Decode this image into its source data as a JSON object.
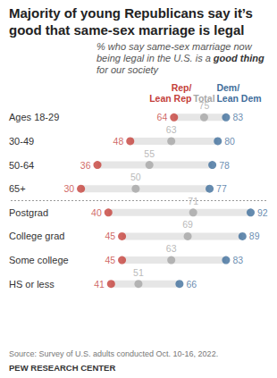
{
  "chart_data": {
    "type": "dot",
    "title": "Majority of young Republicans say it’s good that same-sex marriage is legal",
    "subtitle": "% who say same-sex marriage now being legal in the U.S. is a good thing for our society",
    "subtitle_bold": "good thing",
    "source": "Source: Survey of U.S. adults conducted Oct. 10-16, 2022.",
    "credit": "PEW RESEARCH CENTER",
    "categories": [
      "Ages 18-29",
      "30-49",
      "50-64",
      "65+",
      "Postgrad",
      "College grad",
      "Some college",
      "HS or less"
    ],
    "series": [
      {
        "name": "Rep/Lean Rep",
        "color": "#c4403a",
        "values": [
          64,
          48,
          36,
          30,
          40,
          45,
          45,
          41
        ]
      },
      {
        "name": "Total",
        "color": "#a6a6a6",
        "values": [
          75,
          63,
          55,
          50,
          71,
          69,
          63,
          51
        ]
      },
      {
        "name": "Dem/Lean Dem",
        "color": "#3f6e9b",
        "values": [
          83,
          80,
          78,
          77,
          92,
          89,
          83,
          66
        ]
      }
    ],
    "xlim": [
      20,
      100
    ],
    "data_labels": true,
    "tick_labels": false,
    "grid": false
  }
}
